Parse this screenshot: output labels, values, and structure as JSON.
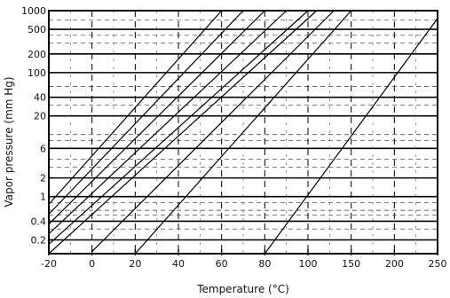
{
  "chart_data": {
    "type": "line",
    "title": "",
    "xlabel": "Temperature (°C)",
    "ylabel": "Vapor pressure (mm Hg)",
    "y_scale": "log",
    "grid": true,
    "x_tick_labels": [
      "-20",
      "0",
      "20",
      "40",
      "60",
      "80",
      "100",
      "150",
      "200",
      "250"
    ],
    "y_tick_labels": [
      "0.2",
      "0.4",
      "1",
      "2",
      "6",
      "20",
      "40",
      "100",
      "200",
      "500",
      "1000"
    ],
    "y_ticks": [
      0.2,
      0.4,
      1,
      2,
      6,
      20,
      40,
      100,
      200,
      500,
      1000
    ],
    "ylim": [
      0.12,
      1000
    ],
    "series": [
      {
        "values": [
          [
            -20,
            0.75
          ],
          [
            60,
            1000
          ]
        ]
      },
      {
        "values": [
          [
            -20,
            0.52
          ],
          [
            70,
            1000
          ]
        ]
      },
      {
        "values": [
          [
            -20,
            0.36
          ],
          [
            80,
            1000
          ]
        ]
      },
      {
        "values": [
          [
            -20,
            0.25
          ],
          [
            90,
            1000
          ]
        ]
      },
      {
        "values": [
          [
            -20,
            0.17
          ],
          [
            100,
            1000
          ]
        ]
      },
      {
        "values": [
          [
            -20,
            0.12
          ],
          [
            110,
            1000
          ]
        ]
      },
      {
        "values": [
          [
            0,
            0.13
          ],
          [
            130,
            1000
          ]
        ]
      },
      {
        "values": [
          [
            20,
            0.12
          ],
          [
            150,
            1000
          ]
        ]
      },
      {
        "values": [
          [
            80,
            0.12
          ],
          [
            250,
            750
          ]
        ]
      }
    ]
  }
}
